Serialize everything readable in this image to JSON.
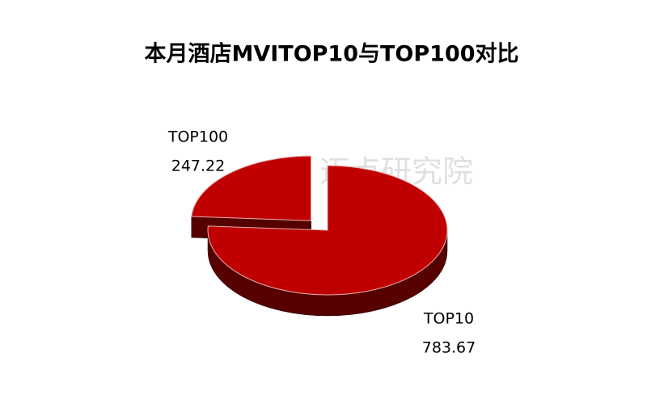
{
  "chart_data": {
    "type": "pie",
    "title": "本月酒店MVITOP10与TOP100对比",
    "categories": [
      "TOP10",
      "TOP100"
    ],
    "values": [
      783.67,
      247.22
    ],
    "colors": [
      "#c00000",
      "#c00000"
    ],
    "watermark": "迈点研究院"
  }
}
